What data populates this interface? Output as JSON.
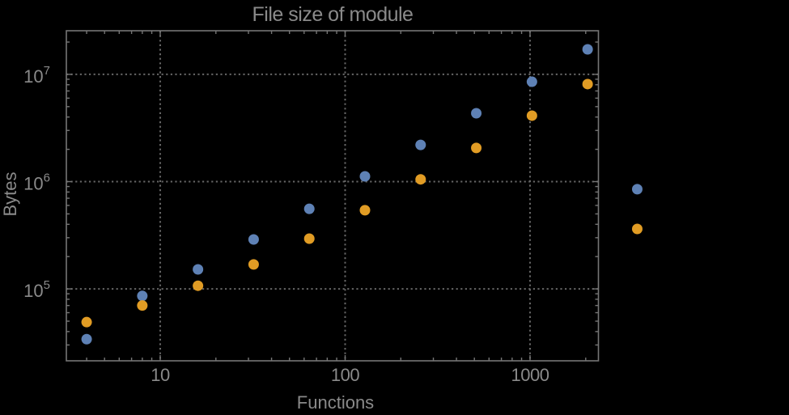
{
  "figure": {
    "title": "File size of module",
    "xlabel": "Functions",
    "ylabel": "Bytes"
  },
  "chart_data": {
    "type": "scatter",
    "title": "File size of module",
    "xlabel": "Functions",
    "ylabel": "Bytes",
    "x_scale": "log",
    "y_scale": "log",
    "xlim": [
      3.2,
      2320
    ],
    "ylim": [
      21600,
      25500000
    ],
    "grid": "dotted-major",
    "legend": null,
    "x_ticks": [
      10,
      100,
      1000
    ],
    "x_tick_labels": [
      "10",
      "100",
      "1000"
    ],
    "y_ticks": [
      100000,
      1000000,
      10000000
    ],
    "y_tick_base": "10",
    "y_tick_exponents": [
      "5",
      "6",
      "7"
    ],
    "colors": {
      "background": "#000000",
      "frame": "#757575",
      "gridline": "#666666",
      "text": "#8a8a8a",
      "series_blue": "#5E81B5",
      "series_orange": "#E19C24"
    },
    "series": [
      {
        "name": "blue",
        "color": "#5E81B5",
        "x": [
          4,
          8,
          16,
          32,
          64,
          128,
          256,
          512,
          1024,
          2048,
          3800
        ],
        "y": [
          34000,
          86000,
          152000,
          289000,
          558000,
          1120000,
          2200000,
          4340000,
          8530000,
          17100000,
          850000
        ]
      },
      {
        "name": "orange",
        "color": "#E19C24",
        "x": [
          4,
          8,
          16,
          32,
          64,
          128,
          256,
          512,
          1024,
          2048,
          3800
        ],
        "y": [
          49000,
          70000,
          107000,
          169000,
          294000,
          541000,
          1050000,
          2060000,
          4120000,
          8110000,
          362000
        ]
      }
    ]
  }
}
